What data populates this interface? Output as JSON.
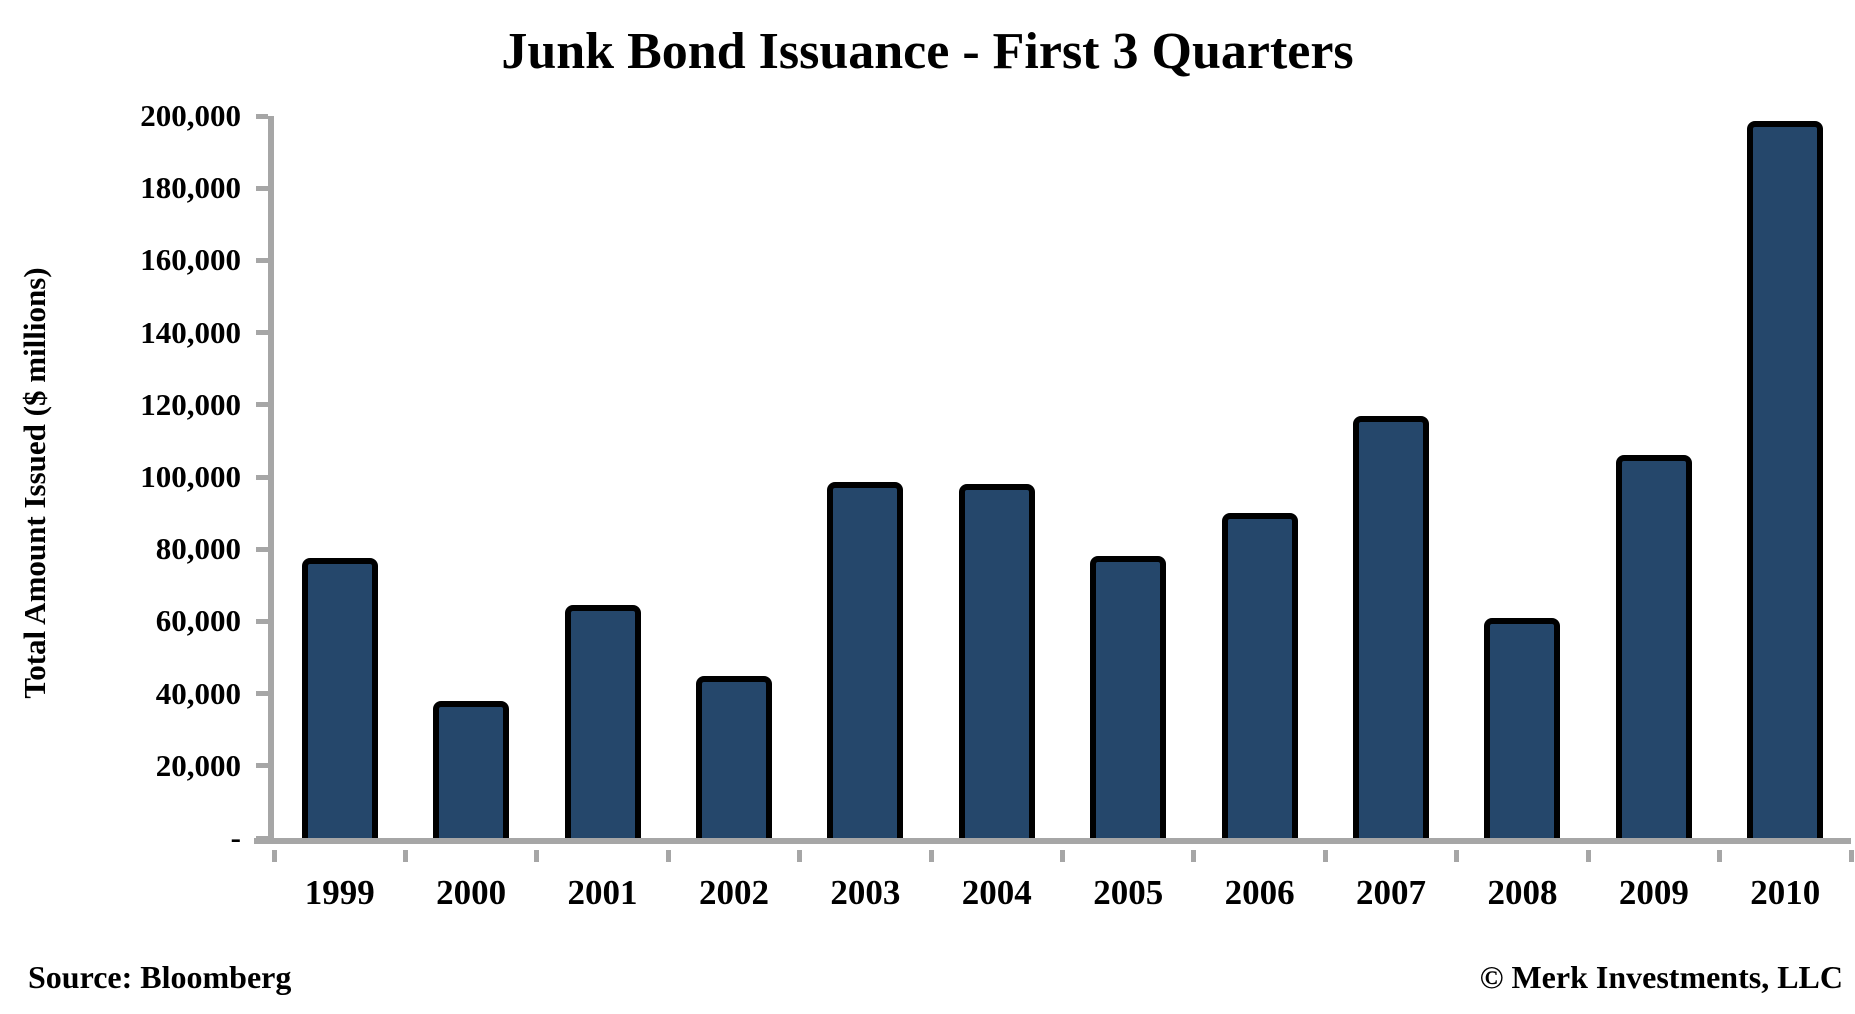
{
  "chart_data": {
    "type": "bar",
    "title": "Junk Bond Issuance - First 3 Quarters",
    "ylabel": "Total Amount Issued ($ millions)",
    "xlabel": "",
    "categories": [
      "1999",
      "2000",
      "2001",
      "2002",
      "2003",
      "2004",
      "2005",
      "2006",
      "2007",
      "2008",
      "2009",
      "2010"
    ],
    "values": [
      77500,
      38000,
      64500,
      45000,
      98500,
      98000,
      78000,
      90000,
      117000,
      61000,
      106000,
      198500
    ],
    "ylim": [
      0,
      200000
    ],
    "ytick_step": 20000,
    "ytick_labels_top_down": [
      "200,000",
      "180,000",
      "160,000",
      "140,000",
      "120,000",
      "100,000",
      "80,000",
      "60,000",
      "40,000",
      "20,000",
      "-"
    ],
    "grid": false,
    "legend": "none",
    "bar_color": "#25476B",
    "bar_border_color": "#000000",
    "axis_color": "#A6A6A6",
    "text_color": "#000000"
  },
  "footer": {
    "source": "Source: Bloomberg",
    "copyright": "© Merk Investments, LLC"
  }
}
